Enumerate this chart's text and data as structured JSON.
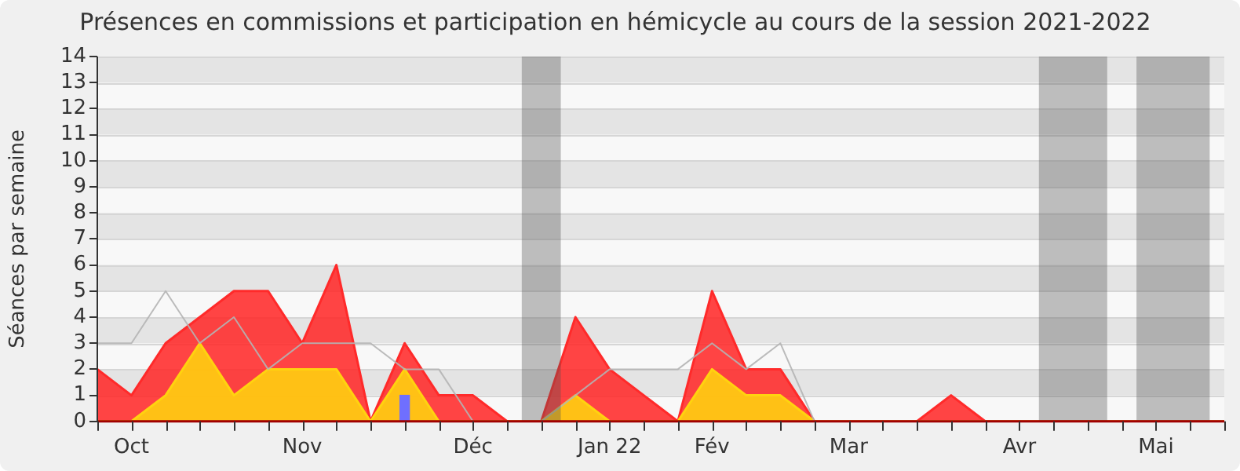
{
  "chart_data": {
    "type": "area",
    "title": "Présences en commissions et participation en hémicycle au cours de la session 2021-2022",
    "ylabel": "Séances par semaine",
    "x": [
      "2021-10-03",
      "2021-10-10",
      "2021-10-17",
      "2021-10-24",
      "2021-10-31",
      "2021-11-07",
      "2021-11-14",
      "2021-11-21",
      "2021-11-28",
      "2021-12-05",
      "2021-12-12",
      "2021-12-19",
      "2021-12-26",
      "2022-01-02",
      "2022-01-09",
      "2022-01-16",
      "2022-01-23",
      "2022-01-30",
      "2022-02-06",
      "2022-02-13",
      "2022-02-20",
      "2022-02-27",
      "2022-03-06",
      "2022-03-13",
      "2022-03-20",
      "2022-03-27",
      "2022-04-03",
      "2022-04-10",
      "2022-04-17",
      "2022-04-24",
      "2022-05-01",
      "2022-05-08",
      "2022-05-15",
      "2022-05-22"
    ],
    "series": [
      {
        "color": "#ff2a2a",
        "values": [
          2,
          1,
          3,
          4,
          5,
          5,
          3,
          6,
          0,
          3,
          1,
          1,
          0,
          0,
          4,
          2,
          1,
          0,
          5,
          2,
          2,
          0,
          0,
          0,
          0,
          1,
          0,
          0,
          0,
          0,
          0,
          0,
          0,
          0
        ]
      },
      {
        "color": "#ffd30f",
        "values": [
          0,
          0,
          1,
          3,
          1,
          2,
          2,
          2,
          0,
          2,
          0,
          0,
          0,
          0,
          1,
          0,
          0,
          0,
          2,
          1,
          1,
          0,
          0,
          0,
          0,
          0,
          0,
          0,
          0,
          0,
          0,
          0,
          0,
          0
        ]
      },
      {
        "type": "line",
        "color": "#b4b4b4",
        "values": [
          3,
          3,
          5,
          3,
          4,
          2,
          3,
          3,
          3,
          2,
          2,
          0,
          0,
          0,
          1,
          2,
          2,
          2,
          3,
          2,
          3,
          0,
          0,
          0,
          0,
          0,
          0,
          0,
          0,
          0,
          0,
          0,
          0,
          0
        ]
      },
      {
        "type": "bar",
        "color": "#6f6fff",
        "values": [
          null,
          null,
          null,
          null,
          null,
          null,
          null,
          null,
          null,
          1,
          null,
          null,
          null,
          null,
          null,
          null,
          null,
          null,
          null,
          null,
          null,
          null,
          null,
          null,
          null,
          null,
          null,
          null,
          null,
          null,
          null,
          null,
          null,
          null
        ]
      }
    ],
    "xlim": [
      "2021-10-03",
      "2022-05-22"
    ],
    "xticks": [
      {
        "value": "2021-10-03",
        "label": null
      },
      {
        "value": "2021-10-10",
        "label": "Oct"
      },
      {
        "value": "2021-10-17",
        "label": null
      },
      {
        "value": "2021-10-24",
        "label": null
      },
      {
        "value": "2021-10-31",
        "label": null
      },
      {
        "value": "2021-11-07",
        "label": null
      },
      {
        "value": "2021-11-14",
        "label": "Nov"
      },
      {
        "value": "2021-11-21",
        "label": null
      },
      {
        "value": "2021-11-28",
        "label": null
      },
      {
        "value": "2021-12-05",
        "label": null
      },
      {
        "value": "2021-12-12",
        "label": null
      },
      {
        "value": "2021-12-19",
        "label": "Déc"
      },
      {
        "value": "2021-12-26",
        "label": null
      },
      {
        "value": "2022-01-02",
        "label": null
      },
      {
        "value": "2022-01-09",
        "label": null
      },
      {
        "value": "2022-01-16",
        "label": "Jan 22"
      },
      {
        "value": "2022-01-23",
        "label": null
      },
      {
        "value": "2022-01-30",
        "label": null
      },
      {
        "value": "2022-02-06",
        "label": "Fév"
      },
      {
        "value": "2022-02-13",
        "label": null
      },
      {
        "value": "2022-02-20",
        "label": null
      },
      {
        "value": "2022-02-27",
        "label": null
      },
      {
        "value": "2022-03-06",
        "label": "Mar"
      },
      {
        "value": "2022-03-13",
        "label": null
      },
      {
        "value": "2022-03-20",
        "label": null
      },
      {
        "value": "2022-03-27",
        "label": null
      },
      {
        "value": "2022-04-03",
        "label": null
      },
      {
        "value": "2022-04-10",
        "label": "Avr"
      },
      {
        "value": "2022-04-17",
        "label": null
      },
      {
        "value": "2022-04-24",
        "label": null
      },
      {
        "value": "2022-05-01",
        "label": null
      },
      {
        "value": "2022-05-08",
        "label": "Mai"
      },
      {
        "value": "2022-05-15",
        "label": null
      },
      {
        "value": "2022-05-22",
        "label": null
      }
    ],
    "ylim": [
      0,
      14
    ],
    "yticks": [
      0,
      1,
      2,
      3,
      4,
      5,
      6,
      7,
      8,
      9,
      10,
      11,
      12,
      13,
      14
    ],
    "bands": [
      {
        "axis": "x",
        "from": "2021-12-29",
        "to": "2022-01-06",
        "color": "#4f4f4f"
      },
      {
        "axis": "x",
        "from": "2022-04-14",
        "to": "2022-04-28",
        "color": "#4f4f4f"
      },
      {
        "axis": "x",
        "from": "2022-05-04",
        "to": "2022-05-19",
        "color": "#4f4f4f"
      }
    ],
    "grid": "y",
    "legend": false
  }
}
